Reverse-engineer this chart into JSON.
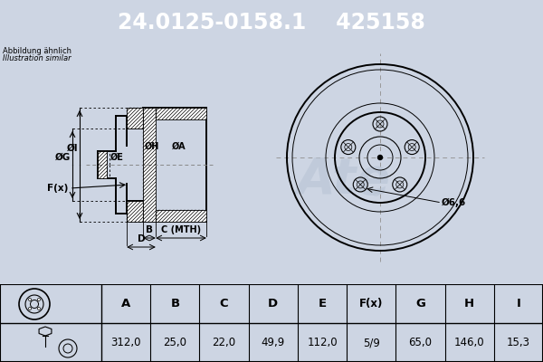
{
  "title_part": "24.0125-0158.1",
  "title_code": "425158",
  "header_bg": "#1c3fa0",
  "header_text_color": "#ffffff",
  "bg_color": "#cdd5e3",
  "note_line1": "Abbildung ähnlich",
  "note_line2": "Illustration similar",
  "table_headers": [
    "A",
    "B",
    "C",
    "D",
    "E",
    "F(x)",
    "G",
    "H",
    "I"
  ],
  "table_values": [
    "312,0",
    "25,0",
    "22,0",
    "49,9",
    "112,0",
    "5/9",
    "65,0",
    "146,0",
    "15,3"
  ],
  "dimension_label": "Ø6,6",
  "c_label": "C (MTH)",
  "lc": "#000000",
  "lw_thick": 1.4,
  "lw_thin": 0.8,
  "hatch_color": "#000000",
  "crosshair_color": "#999999",
  "watermark_color": "#b8c4d4"
}
